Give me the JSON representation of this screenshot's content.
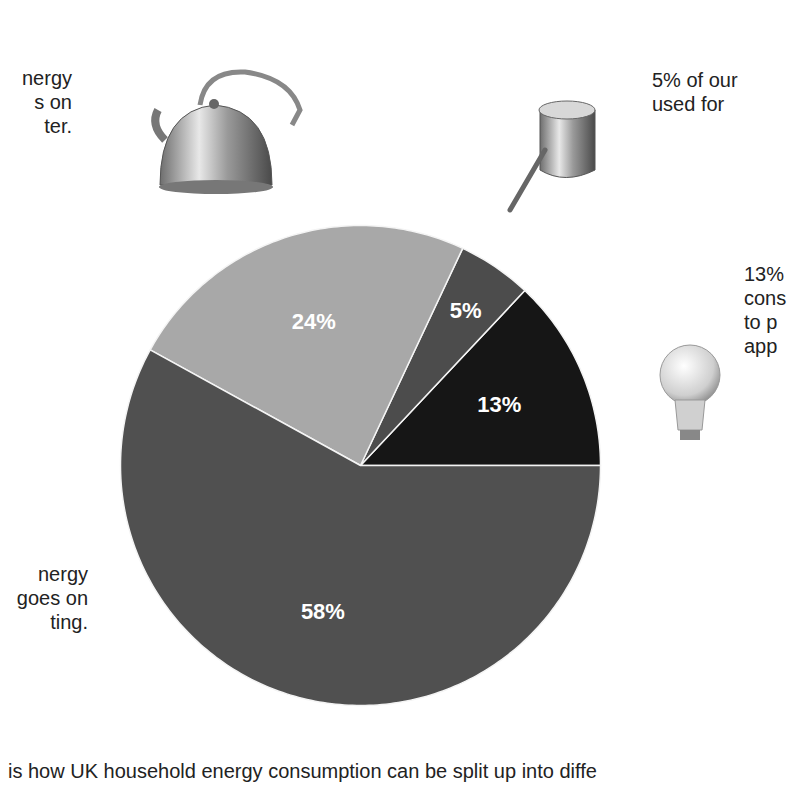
{
  "chart_data": {
    "type": "pie",
    "values": [
      13,
      5,
      24,
      58
    ],
    "value_labels": [
      "13%",
      "5%",
      "24%",
      "58%"
    ],
    "colors": [
      "#161616",
      "#4c4c4c",
      "#a8a8a8",
      "#505050"
    ],
    "data_labels": true,
    "annotations": [
      [
        "nergy",
        "s on",
        "ter."
      ],
      [
        "5% of our",
        "used for"
      ],
      [
        "13%",
        "cons",
        "to p",
        "app"
      ],
      [
        "nergy",
        "goes on",
        "ting."
      ]
    ],
    "caption": "is how UK household energy consumption can be split up into diffe"
  }
}
